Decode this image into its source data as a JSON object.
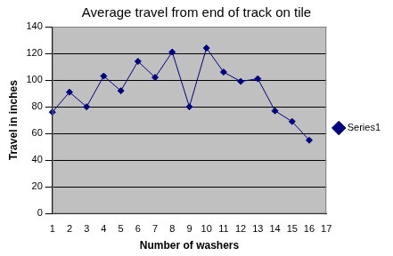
{
  "chart_data": {
    "type": "line",
    "title": "Average travel from end of track on tile",
    "x_label": "Number of washers",
    "y_label": "Travel in inches",
    "categories": [
      1,
      2,
      3,
      4,
      5,
      6,
      7,
      8,
      9,
      10,
      11,
      12,
      13,
      14,
      15,
      16,
      17
    ],
    "series": [
      {
        "name": "Series1",
        "color": "#000080",
        "marker": "diamond",
        "line_style": "solid",
        "values": [
          76,
          91,
          80,
          103,
          92,
          114,
          102,
          121,
          80,
          124,
          106,
          99,
          101,
          77,
          69,
          55,
          null
        ]
      }
    ],
    "ylim": [
      0,
      140
    ],
    "yticks": [
      0,
      20,
      40,
      60,
      80,
      100,
      120,
      140
    ],
    "grid": true,
    "legend": "right"
  }
}
